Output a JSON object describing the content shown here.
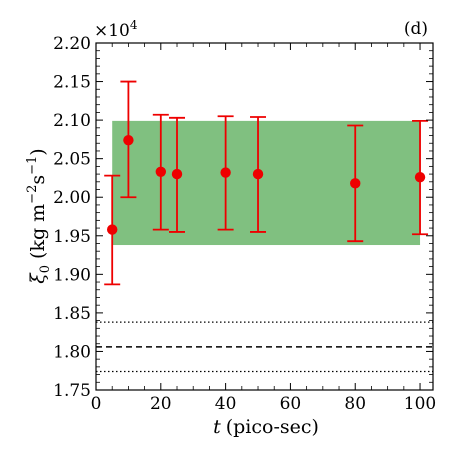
{
  "chart_data": {
    "type": "scatter",
    "panel_label": "(d)",
    "xlabel": "t (pico-sec)",
    "xlabel_var": "t",
    "xlabel_unit": "(pico-sec)",
    "ylabel": "ξ0 (kg m−2s−1)",
    "ylabel_var": "ξ",
    "ylabel_sub": "0",
    "ylabel_unit_pre": "(kg m",
    "ylabel_unit_sup": "−2",
    "ylabel_unit_mid": "s",
    "ylabel_unit_sup2": "−1",
    "ylabel_unit_post": ")",
    "y_multiplier_base": "×10",
    "y_multiplier_exp": "4",
    "xlim": [
      0,
      104
    ],
    "ylim": [
      1.75,
      2.2
    ],
    "xticks": [
      0,
      20,
      40,
      60,
      80,
      100
    ],
    "xtick_labels": [
      "0",
      "20",
      "40",
      "60",
      "80",
      "100"
    ],
    "yticks": [
      1.75,
      1.8,
      1.85,
      1.9,
      1.95,
      2.0,
      2.05,
      2.1,
      2.15,
      2.2
    ],
    "ytick_labels": [
      "1.75",
      "1.80",
      "1.85",
      "1.90",
      "1.95",
      "2.00",
      "2.05",
      "2.10",
      "2.15",
      "2.20"
    ],
    "grid": false,
    "series": [
      {
        "marker_color": "#ee0000",
        "x": [
          5,
          10,
          20,
          25,
          40,
          50,
          80,
          100
        ],
        "y": [
          1.958,
          2.074,
          2.033,
          2.03,
          2.032,
          2.03,
          2.018,
          2.026
        ],
        "yerr_low": [
          1.887,
          2.0,
          1.958,
          1.955,
          1.958,
          1.955,
          1.943,
          1.952
        ],
        "yerr_high": [
          2.028,
          2.15,
          2.107,
          2.103,
          2.105,
          2.104,
          2.093,
          2.099
        ]
      }
    ],
    "band": {
      "x_from": 5,
      "x_to": 100,
      "y_low": 1.938,
      "y_high": 2.099,
      "color": "#80c080"
    },
    "hlines": [
      {
        "y": 1.838,
        "style": "dotted"
      },
      {
        "y": 1.806,
        "style": "dashed"
      },
      {
        "y": 1.774,
        "style": "dotted"
      }
    ]
  }
}
